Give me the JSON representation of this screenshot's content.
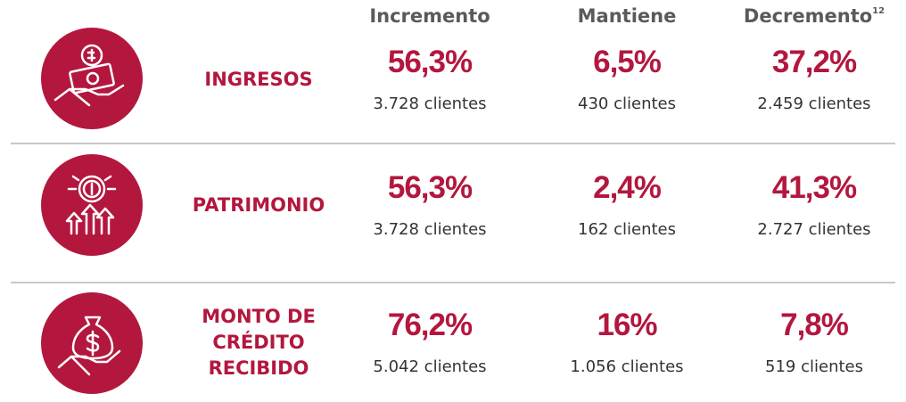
{
  "header": {
    "columns": [
      "Incremento",
      "Mantiene",
      "Decremento"
    ],
    "footnote": "12"
  },
  "rows": [
    {
      "label": [
        "INGRESOS"
      ],
      "cells": [
        {
          "percent": "56,3%",
          "clients": "3.728 clientes"
        },
        {
          "percent": "6,5%",
          "clients": "430 clientes"
        },
        {
          "percent": "37,2%",
          "clients": "2.459 clientes"
        }
      ]
    },
    {
      "label": [
        "PATRIMONIO"
      ],
      "cells": [
        {
          "percent": "56,3%",
          "clients": "3.728 clientes"
        },
        {
          "percent": "2,4%",
          "clients": "162 clientes"
        },
        {
          "percent": "41,3%",
          "clients": "2.727 clientes"
        }
      ]
    },
    {
      "label": [
        "MONTO DE",
        "CRÉDITO",
        "RECIBIDO"
      ],
      "cells": [
        {
          "percent": "76,2%",
          "clients": "5.042 clientes"
        },
        {
          "percent": "16%",
          "clients": "1.056 clientes"
        },
        {
          "percent": "7,8%",
          "clients": "519 clientes"
        }
      ]
    }
  ]
}
